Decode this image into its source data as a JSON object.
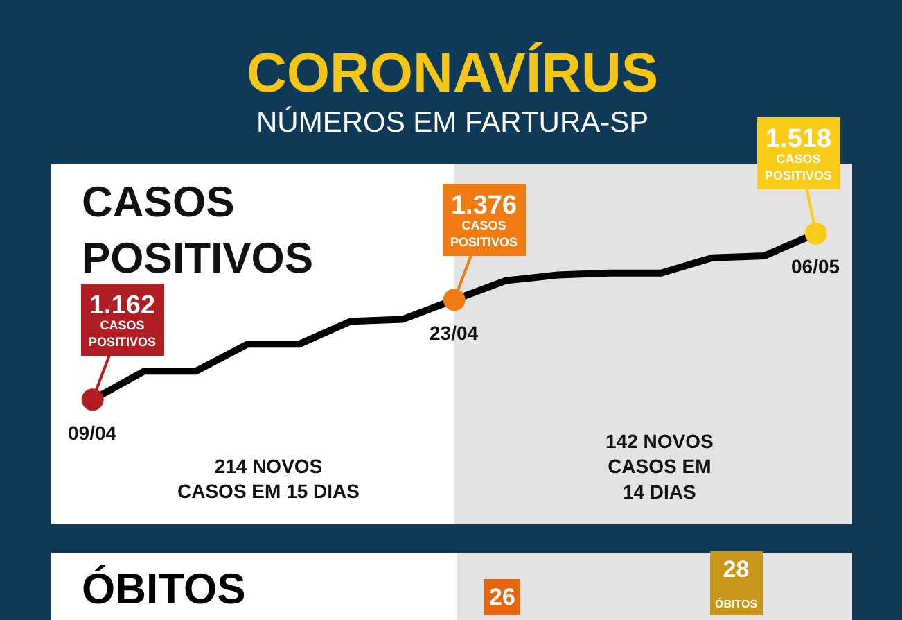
{
  "chart_data": [
    {
      "type": "line",
      "title": "CORONAVÍRUS",
      "subtitle": "NÚMEROS EM FARTURA-SP",
      "categories": [
        "09/04",
        null,
        null,
        null,
        null,
        null,
        null,
        "23/04",
        null,
        null,
        null,
        null,
        null,
        null,
        "06/05"
      ],
      "series": [
        {
          "color": "#000000",
          "values": [
            1162,
            1223,
            1223,
            1281,
            1281,
            1330,
            1334,
            1376,
            1417,
            1429,
            1433,
            1433,
            1466,
            1470,
            1518
          ],
          "colors": [
            "#b01e23",
            null,
            null,
            null,
            null,
            null,
            null,
            "#f07b12",
            null,
            null,
            null,
            null,
            null,
            null,
            "#f9cc1a"
          ],
          "value_labels": [
            "1.162\nCASOS\nPOSITIVOS",
            null,
            null,
            null,
            null,
            null,
            null,
            "1.376\nCASOS\nPOSITIVOS",
            null,
            null,
            null,
            null,
            null,
            null,
            "1.518\nCASOS\nPOSITIVOS"
          ]
        }
      ],
      "annotations": [
        "CASOS\nPOSITIVOS",
        "214 NOVOS\nCASOS EM 15 DIAS",
        "142 NOVOS\nCASOS EM\n14 DIAS"
      ],
      "bands": [
        {
          "axis": "x",
          "from": "23/04",
          "to": "06/05",
          "color": "#e3e3e3"
        }
      ],
      "line_style": "solid",
      "grid": false,
      "legend": false,
      "tick_labels": "x"
    },
    {
      "type": "other",
      "title": "ÓBITOS",
      "annotations": [
        "26",
        "28\nÓBITOS"
      ]
    }
  ]
}
